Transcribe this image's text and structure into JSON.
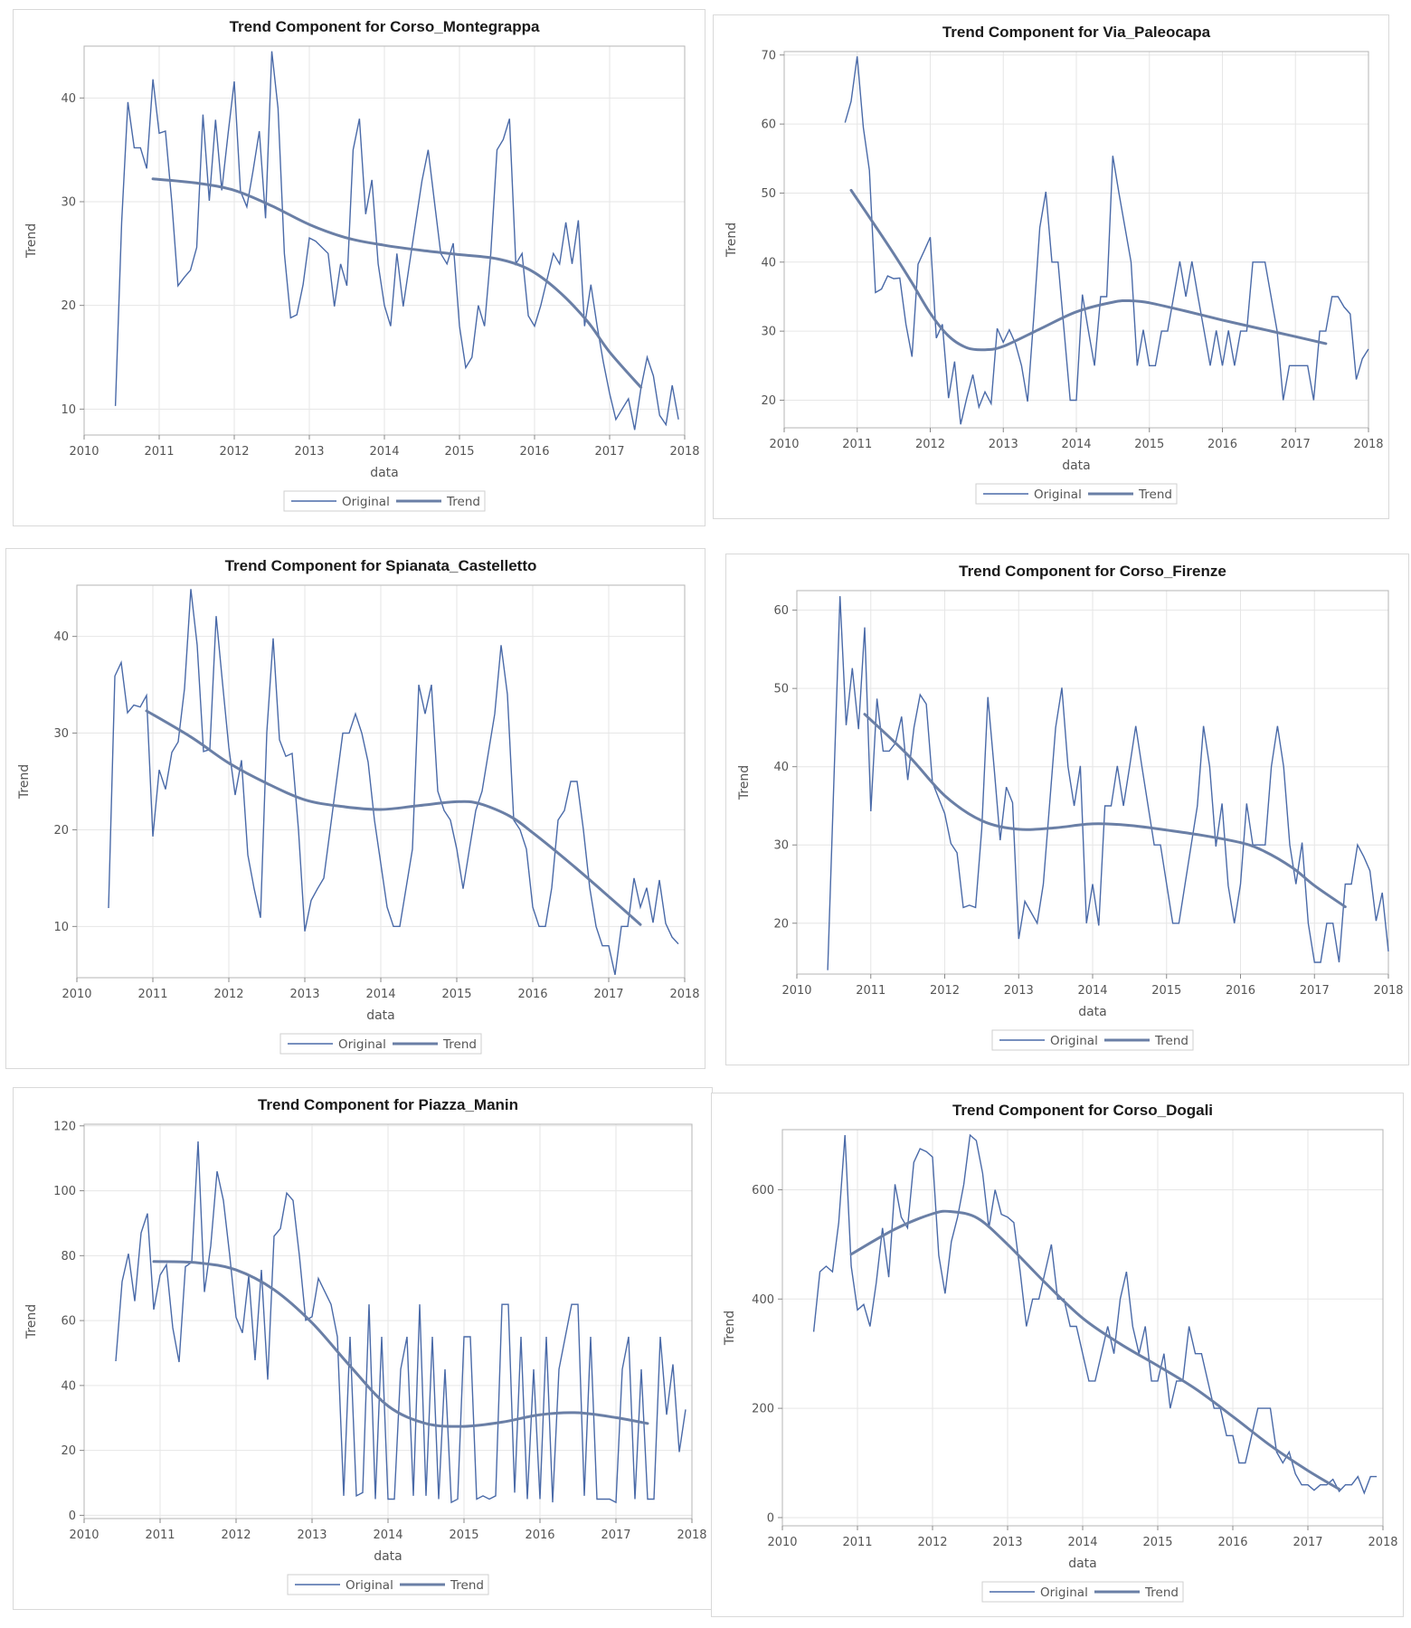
{
  "colors": {
    "original": "#4a6aa8",
    "trend": "#6a7fa6",
    "grid": "#e6e6e6",
    "frame": "#b5b5b5"
  },
  "legend": {
    "original_label": "Original",
    "trend_label": "Trend"
  },
  "chart_data": [
    {
      "type": "line",
      "title": "Trend Component for Corso_Montegrappa",
      "xlabel": "data",
      "ylabel": "Trend",
      "x_start": 2010.417,
      "x_step": 0.08333,
      "xlim": [
        2010,
        2018
      ],
      "ylim": [
        7.5,
        45
      ],
      "xticks": [
        2010,
        2011,
        2012,
        2013,
        2014,
        2015,
        2016,
        2017,
        2018
      ],
      "yticks": [
        10,
        20,
        30,
        40
      ],
      "grid": true,
      "legend_position": "bottom",
      "series": [
        {
          "name": "Original",
          "values": [
            10.3,
            28,
            39.6,
            35.2,
            35.2,
            33.2,
            41.8,
            36.6,
            36.8,
            30,
            21.9,
            22.7,
            23.4,
            25.6,
            38.4,
            30.1,
            37.9,
            31.1,
            36.5,
            41.6,
            31,
            29.5,
            33,
            36.8,
            28.4,
            44.5,
            39,
            25,
            18.8,
            19.1,
            22,
            26.5,
            26.2,
            25.6,
            25,
            19.9,
            24,
            21.9,
            35,
            38,
            28.8,
            32.1,
            24,
            20,
            18,
            25,
            19.9,
            24,
            28,
            32,
            35,
            30,
            25,
            24,
            26,
            18,
            14,
            15,
            20,
            18,
            25,
            35,
            36,
            38,
            24,
            25,
            19,
            18,
            20,
            22.5,
            25,
            24,
            28,
            24,
            28.2,
            18,
            22,
            18,
            14.5,
            11.5,
            9,
            10,
            11,
            8,
            12,
            15,
            13.2,
            9.4,
            8.5,
            12.3,
            9
          ]
        },
        {
          "name": "Trend",
          "x": [
            2010.917,
            2011.5,
            2012,
            2012.5,
            2013,
            2013.5,
            2014,
            2014.5,
            2015,
            2015.5,
            2015.917,
            2016.3,
            2016.7,
            2017,
            2017.417
          ],
          "values": [
            32.2,
            31.8,
            31.1,
            29.6,
            27.8,
            26.5,
            25.8,
            25.3,
            24.9,
            24.5,
            23.5,
            21.5,
            18.5,
            15.5,
            12.1
          ]
        }
      ]
    },
    {
      "type": "line",
      "title": "Trend Component for Via_Paleocapa",
      "xlabel": "data",
      "ylabel": "Trend",
      "x_start": 2010.833,
      "x_step": 0.08333,
      "xlim": [
        2010,
        2018
      ],
      "ylim": [
        16,
        70.5
      ],
      "xticks": [
        2010,
        2011,
        2012,
        2013,
        2014,
        2015,
        2016,
        2017,
        2018
      ],
      "yticks": [
        20,
        30,
        40,
        50,
        60,
        70
      ],
      "grid": true,
      "legend_position": "bottom",
      "series": [
        {
          "name": "Original",
          "values": [
            60.2,
            63.3,
            69.8,
            59.5,
            53.3,
            35.6,
            36.1,
            38,
            37.6,
            37.7,
            31,
            26.3,
            39.7,
            41.6,
            43.6,
            29,
            31,
            20.3,
            25.6,
            16.5,
            20.3,
            23.7,
            19,
            21.2,
            19.5,
            30.4,
            28.4,
            30.2,
            28.2,
            25,
            19.8,
            32,
            45,
            50.2,
            40,
            40,
            30,
            20,
            20,
            35.3,
            30,
            25,
            35,
            35,
            55.4,
            50,
            45,
            40,
            25,
            30.2,
            25,
            25,
            30,
            30,
            35,
            40.1,
            35,
            40.1,
            35,
            30,
            25,
            30.1,
            25,
            30.1,
            25,
            30,
            30,
            40,
            40,
            40,
            35,
            30,
            20,
            25,
            25,
            25,
            25,
            20,
            30,
            30,
            35,
            35,
            33.5,
            32.5,
            23,
            26,
            27.4
          ]
        },
        {
          "name": "Trend",
          "x": [
            2010.917,
            2011.25,
            2011.5,
            2011.75,
            2012,
            2012.25,
            2012.5,
            2012.75,
            2013,
            2013.5,
            2014,
            2014.5,
            2014.75,
            2015,
            2015.5,
            2016,
            2016.5,
            2017,
            2017.417
          ],
          "values": [
            50.4,
            45.2,
            41.2,
            37,
            32.6,
            29.3,
            27.6,
            27.3,
            27.8,
            30.3,
            32.8,
            34.2,
            34.4,
            34.1,
            32.9,
            31.6,
            30.4,
            29.2,
            28.2
          ]
        }
      ]
    },
    {
      "type": "line",
      "title": "Trend Component for Spianata_Castelletto",
      "xlabel": "data",
      "ylabel": "Trend",
      "x_start": 2010.417,
      "x_step": 0.08333,
      "xlim": [
        2010,
        2018
      ],
      "ylim": [
        4.7,
        45.3
      ],
      "xticks": [
        2010,
        2011,
        2012,
        2013,
        2014,
        2015,
        2016,
        2017,
        2018
      ],
      "yticks": [
        10,
        20,
        30,
        40
      ],
      "grid": true,
      "legend_position": "bottom",
      "series": [
        {
          "name": "Original",
          "values": [
            11.9,
            35.9,
            37.3,
            32.1,
            32.9,
            32.7,
            33.9,
            19.3,
            26.2,
            24.2,
            28,
            29.1,
            34.6,
            44.9,
            39.1,
            28.1,
            28.3,
            42.1,
            35.2,
            28.5,
            23.6,
            27.2,
            17.4,
            13.9,
            10.9,
            30.1,
            39.8,
            29.3,
            27.6,
            27.9,
            20,
            9.5,
            12.7,
            13.9,
            15,
            20,
            25,
            30,
            30,
            32,
            30,
            27,
            21,
            16.5,
            12,
            10,
            10,
            14,
            18,
            35,
            32,
            35,
            24,
            22,
            21,
            18,
            13.9,
            18,
            22,
            24,
            28,
            32,
            39.1,
            34,
            21,
            20,
            18,
            12,
            10,
            10,
            14,
            21,
            22,
            25,
            25,
            20,
            14,
            10,
            8,
            8,
            5,
            10,
            10,
            15,
            12,
            14,
            10.4,
            14.8,
            10.3,
            8.9,
            8.2
          ]
        },
        {
          "name": "Trend",
          "x": [
            2010.917,
            2011.5,
            2012,
            2012.5,
            2013,
            2013.5,
            2014,
            2014.5,
            2015,
            2015.3,
            2015.7,
            2016,
            2016.5,
            2017,
            2017.417
          ],
          "values": [
            32.3,
            29.6,
            26.9,
            24.8,
            23.1,
            22.4,
            22.1,
            22.5,
            22.9,
            22.7,
            21.4,
            19.7,
            16.5,
            13.1,
            10.2
          ]
        }
      ]
    },
    {
      "type": "line",
      "title": "Trend Component for Corso_Firenze",
      "xlabel": "data",
      "ylabel": "Trend",
      "x_start": 2010.417,
      "x_step": 0.08333,
      "xlim": [
        2010,
        2018
      ],
      "ylim": [
        13.5,
        62.5
      ],
      "xticks": [
        2010,
        2011,
        2012,
        2013,
        2014,
        2015,
        2016,
        2017,
        2018
      ],
      "yticks": [
        20,
        30,
        40,
        50,
        60
      ],
      "grid": true,
      "legend_position": "bottom",
      "series": [
        {
          "name": "Original",
          "values": [
            14,
            38,
            61.8,
            45.3,
            52.6,
            44.8,
            57.8,
            34.3,
            48.7,
            42,
            42,
            43,
            46.4,
            38.3,
            45,
            49.2,
            48,
            38,
            36,
            34,
            30.2,
            29,
            22,
            22.3,
            22,
            32,
            48.9,
            40,
            30.6,
            37.4,
            35.4,
            18,
            22.8,
            21.4,
            20,
            25,
            35,
            45,
            50.1,
            40,
            35,
            40.1,
            20,
            25,
            19.7,
            35,
            35,
            40.1,
            35,
            40,
            45.2,
            40,
            35,
            30,
            30,
            25,
            20,
            20,
            25,
            30,
            35,
            45.2,
            40,
            29.8,
            35.3,
            24.8,
            20,
            25,
            35.3,
            30,
            30,
            30,
            40,
            45.2,
            40,
            30,
            25,
            30.3,
            20,
            15,
            15,
            20,
            20,
            15,
            25,
            25,
            30,
            28.5,
            26.7,
            20.3,
            23.9,
            16.4
          ]
        },
        {
          "name": "Trend",
          "x": [
            2010.917,
            2011.5,
            2012,
            2012.5,
            2013,
            2013.5,
            2014,
            2014.5,
            2015,
            2015.5,
            2016,
            2016.3,
            2016.7,
            2017,
            2017.417
          ],
          "values": [
            46.7,
            41.5,
            36.3,
            33.1,
            32,
            32.2,
            32.7,
            32.5,
            31.9,
            31.2,
            30.3,
            29.3,
            27.1,
            24.8,
            22.1
          ]
        }
      ]
    },
    {
      "type": "line",
      "title": "Trend Component for Piazza_Manin",
      "xlabel": "data",
      "ylabel": "Trend",
      "x_start": 2010.417,
      "x_step": 0.08333,
      "xlim": [
        2010,
        2018
      ],
      "ylim": [
        -1,
        120.5
      ],
      "xticks": [
        2010,
        2011,
        2012,
        2013,
        2014,
        2015,
        2016,
        2017,
        2018
      ],
      "yticks": [
        0,
        20,
        40,
        60,
        80,
        100,
        120
      ],
      "grid": true,
      "legend_position": "bottom",
      "series": [
        {
          "name": "Original",
          "values": [
            47.5,
            72,
            80.6,
            66,
            87,
            93,
            63.4,
            74,
            77.2,
            57.8,
            47.2,
            76.6,
            78,
            115.2,
            68.8,
            83,
            106,
            97,
            80,
            61,
            56.2,
            73.8,
            47.8,
            75.6,
            41.8,
            86,
            88.3,
            99.3,
            97,
            80,
            60.1,
            61.2,
            73,
            69,
            65,
            55,
            6,
            55,
            6,
            7,
            65,
            5,
            55,
            5,
            5,
            45,
            55,
            6,
            65,
            6,
            55,
            5,
            45,
            4,
            5,
            55,
            55,
            5,
            6,
            5,
            6,
            65,
            65,
            7,
            55,
            5,
            45,
            5,
            55,
            4,
            45,
            55,
            65,
            65,
            6,
            55,
            5,
            5,
            5,
            4,
            45,
            55,
            5,
            45,
            5,
            5,
            55,
            31,
            46.5,
            19.5,
            32.6
          ]
        },
        {
          "name": "Trend",
          "x": [
            2010.917,
            2011.5,
            2012,
            2012.5,
            2013,
            2013.5,
            2014,
            2014.5,
            2015,
            2015.5,
            2016,
            2016.5,
            2017,
            2017.417
          ],
          "values": [
            78.2,
            77.8,
            75.6,
            69.5,
            59.3,
            46,
            33.7,
            28.3,
            27.4,
            28.7,
            31,
            31.6,
            30.1,
            28.3
          ]
        }
      ]
    },
    {
      "type": "line",
      "title": "Trend Component for Corso_Dogali",
      "xlabel": "data",
      "ylabel": "Trend",
      "x_start": 2010.417,
      "x_step": 0.08333,
      "xlim": [
        2010,
        2018
      ],
      "ylim": [
        -15,
        710
      ],
      "xticks": [
        2010,
        2011,
        2012,
        2013,
        2014,
        2015,
        2016,
        2017,
        2018
      ],
      "yticks": [
        0,
        200,
        400,
        600
      ],
      "grid": true,
      "legend_position": "bottom",
      "series": [
        {
          "name": "Original",
          "values": [
            340,
            450,
            460,
            450,
            540,
            700,
            460,
            380,
            390,
            350,
            430,
            530,
            440,
            610,
            550,
            530,
            650,
            675,
            670,
            660,
            480,
            410,
            505,
            550,
            610,
            700,
            690,
            630,
            530,
            600,
            555,
            550,
            540,
            450,
            350,
            400,
            400,
            450,
            500,
            400,
            400,
            350,
            350,
            300,
            250,
            250,
            300,
            350,
            300,
            400,
            450,
            350,
            300,
            350,
            250,
            250,
            300,
            200,
            250,
            250,
            350,
            300,
            300,
            250,
            200,
            200,
            150,
            150,
            100,
            100,
            150,
            200,
            200,
            200,
            120,
            100,
            120,
            80,
            60,
            60,
            50,
            60,
            60,
            70,
            48,
            60,
            60,
            75,
            45,
            75,
            75
          ]
        },
        {
          "name": "Trend",
          "x": [
            2010.917,
            2011.5,
            2012,
            2012.25,
            2012.6,
            2013,
            2013.5,
            2014,
            2014.5,
            2015,
            2015.5,
            2016,
            2016.5,
            2017,
            2017.417
          ],
          "values": [
            482,
            528,
            556,
            560,
            548,
            500,
            430,
            365,
            318,
            278,
            236,
            185,
            132,
            86,
            52
          ]
        }
      ]
    }
  ]
}
